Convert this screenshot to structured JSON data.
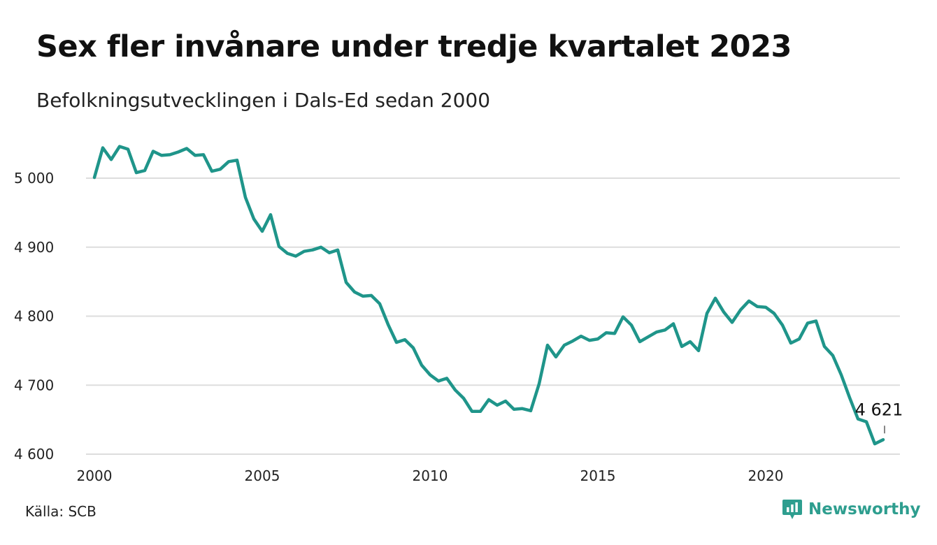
{
  "header": {
    "title": "Sex fler invånare under tredje kvartalet 2023",
    "subtitle": "Befolkningsutvecklingen i Dals-Ed sedan 2000"
  },
  "footer": {
    "source": "Källa: SCB",
    "brand": "Newsworthy",
    "brand_icon": "chart-bubble-icon"
  },
  "colors": {
    "line": "#1f958a",
    "grid": "#dddddd",
    "brand": "#2e9e8f"
  },
  "chart_data": {
    "type": "line",
    "title": "Sex fler invånare under tredje kvartalet 2023",
    "subtitle": "Befolkningsutvecklingen i Dals-Ed sedan 2000",
    "xlabel": "",
    "ylabel": "",
    "xlim": [
      2000,
      2024
    ],
    "ylim": [
      4590,
      5060
    ],
    "grid": true,
    "x_ticks": [
      2000,
      2005,
      2010,
      2015,
      2020
    ],
    "x_tick_labels": [
      "2000",
      "2005",
      "2010",
      "2015",
      "2020"
    ],
    "y_ticks": [
      4600,
      4700,
      4800,
      4900,
      5000
    ],
    "y_tick_labels": [
      "4 600",
      "4 700",
      "4 800",
      "4 900",
      "5 000"
    ],
    "end_label": "4 621",
    "series": [
      {
        "x": [
          2000.0,
          2000.25,
          2000.5,
          2000.75,
          2001.0,
          2001.25,
          2001.5,
          2001.75,
          2002.0,
          2002.25,
          2002.5,
          2002.75,
          2003.0,
          2003.25,
          2003.5,
          2003.75,
          2004.0,
          2004.25,
          2004.5,
          2004.75,
          2005.0,
          2005.25,
          2005.5,
          2005.75,
          2006.0,
          2006.25,
          2006.5,
          2006.75,
          2007.0,
          2007.25,
          2007.5,
          2007.75,
          2008.0,
          2008.25,
          2008.5,
          2008.75,
          2009.0,
          2009.25,
          2009.5,
          2009.75,
          2010.0,
          2010.25,
          2010.5,
          2010.75,
          2011.0,
          2011.25,
          2011.5,
          2011.75,
          2012.0,
          2012.25,
          2012.5,
          2012.75,
          2013.0,
          2013.25,
          2013.5,
          2013.75,
          2014.0,
          2014.25,
          2014.5,
          2014.75,
          2015.0,
          2015.25,
          2015.5,
          2015.75,
          2016.0,
          2016.25,
          2016.5,
          2016.75,
          2017.0,
          2017.25,
          2017.5,
          2017.75,
          2018.0,
          2018.25,
          2018.5,
          2018.75,
          2019.0,
          2019.25,
          2019.5,
          2019.75,
          2020.0,
          2020.25,
          2020.5,
          2020.75,
          2021.0,
          2021.25,
          2021.5,
          2021.75,
          2022.0,
          2022.25,
          2022.5,
          2022.75,
          2023.0,
          2023.25,
          2023.5
        ],
        "values": [
          5001,
          5044,
          5027,
          5046,
          5042,
          5008,
          5011,
          5039,
          5033,
          5034,
          5038,
          5043,
          5033,
          5034,
          5010,
          5013,
          5024,
          5026,
          4972,
          4941,
          4923,
          4947,
          4901,
          4891,
          4887,
          4894,
          4896,
          4900,
          4892,
          4896,
          4849,
          4835,
          4829,
          4830,
          4818,
          4788,
          4762,
          4766,
          4754,
          4729,
          4715,
          4706,
          4710,
          4693,
          4681,
          4662,
          4662,
          4679,
          4671,
          4677,
          4665,
          4666,
          4663,
          4702,
          4758,
          4741,
          4758,
          4764,
          4771,
          4765,
          4767,
          4776,
          4775,
          4799,
          4787,
          4763,
          4770,
          4777,
          4780,
          4789,
          4756,
          4763,
          4750,
          4804,
          4826,
          4806,
          4791,
          4809,
          4822,
          4814,
          4813,
          4804,
          4787,
          4761,
          4767,
          4790,
          4793,
          4756,
          4743,
          4715,
          4682,
          4651,
          4647,
          4615,
          4621
        ]
      }
    ]
  }
}
